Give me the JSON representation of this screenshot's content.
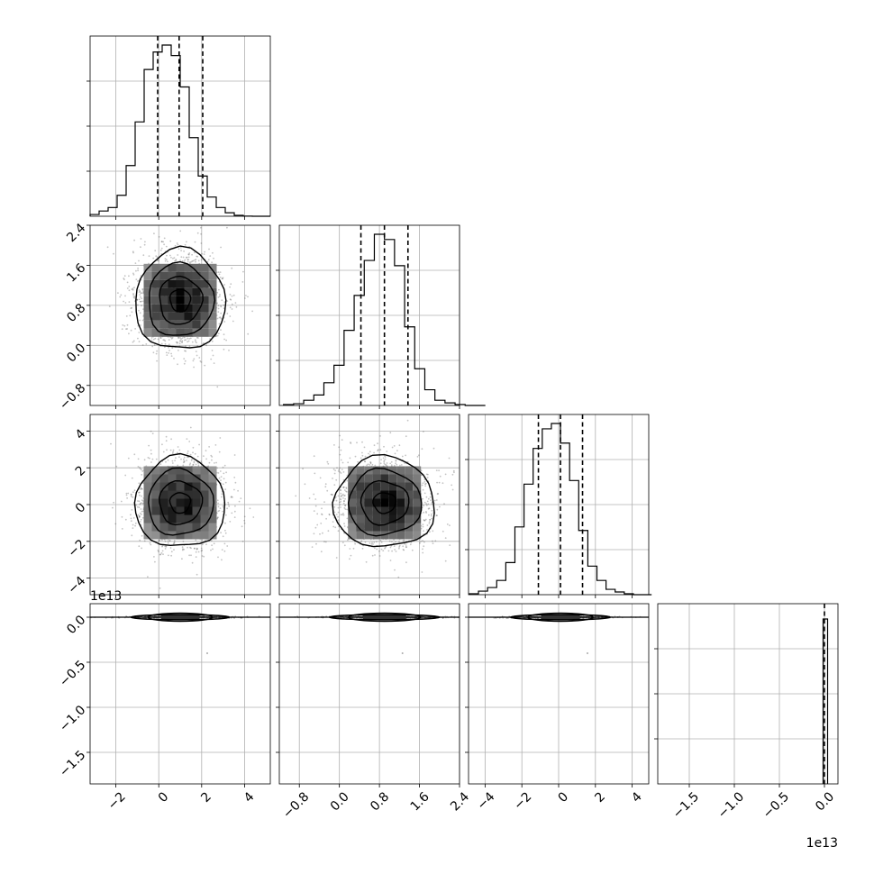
{
  "chart_data": {
    "type": "corner",
    "ndim": 4,
    "quantiles": [
      0.16,
      0.5,
      0.84
    ],
    "parameters": [
      {
        "mean": 1.0,
        "sigma": 1.0,
        "range": [
          -3.2,
          5.2
        ],
        "ticks": [
          -2,
          0,
          2,
          4
        ],
        "tick_labels": [
          "−2",
          "0",
          "2",
          "4"
        ],
        "quantile_values": [
          -0.05,
          0.95,
          2.05
        ],
        "hist_bins": 20,
        "hist_counts": [
          0.01,
          0.03,
          0.05,
          0.12,
          0.29,
          0.54,
          0.84,
          0.94,
          0.98,
          0.92,
          0.74,
          0.45,
          0.23,
          0.11,
          0.05,
          0.02,
          0.005,
          0.001,
          0,
          0
        ],
        "offset_label": ""
      },
      {
        "mean": 0.9,
        "sigma": 0.48,
        "range": [
          -1.2,
          2.4
        ],
        "ticks": [
          -0.8,
          0.0,
          0.8,
          1.6,
          2.4
        ],
        "tick_labels": [
          "−0.8",
          "0.0",
          "0.8",
          "1.6",
          "2.4"
        ],
        "quantile_values": [
          0.43,
          0.9,
          1.37
        ],
        "hist_bins": 20,
        "hist_counts": [
          0.005,
          0.01,
          0.03,
          0.06,
          0.13,
          0.23,
          0.43,
          0.63,
          0.83,
          0.98,
          0.95,
          0.8,
          0.45,
          0.21,
          0.09,
          0.03,
          0.015,
          0.005,
          0,
          0
        ],
        "offset_label": ""
      },
      {
        "mean": 0.1,
        "sigma": 1.18,
        "range": [
          -4.9,
          4.9
        ],
        "ticks": [
          -4,
          -2,
          0,
          2,
          4
        ],
        "tick_labels": [
          "−4",
          "−2",
          "0",
          "2",
          "4"
        ],
        "quantile_values": [
          -1.1,
          0.1,
          1.3
        ],
        "hist_bins": 20,
        "hist_counts": [
          0.005,
          0.02,
          0.04,
          0.08,
          0.18,
          0.38,
          0.62,
          0.82,
          0.93,
          0.96,
          0.85,
          0.64,
          0.36,
          0.16,
          0.08,
          0.03,
          0.015,
          0.005,
          0,
          0
        ],
        "offset_label": ""
      },
      {
        "mean": 0.0,
        "sigma": 0.03,
        "range": [
          -1.85,
          0.15
        ],
        "ticks": [
          -1.5,
          -1.0,
          -0.5,
          0.0
        ],
        "tick_labels": [
          "−1.5",
          "−1.0",
          "−0.5",
          "0.0"
        ],
        "quantile_values": [
          -0.01,
          0.0,
          0.01
        ],
        "hist_bins": 1,
        "hist_counts": [
          1
        ],
        "offset_label": "1e13"
      }
    ],
    "scatter_samples": 1600,
    "contour_levels": 4,
    "grid": true
  }
}
